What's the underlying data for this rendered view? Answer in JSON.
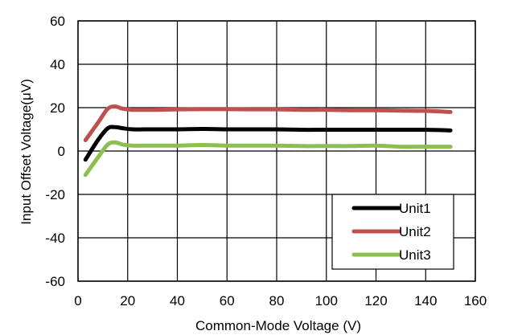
{
  "chart_data": {
    "type": "line",
    "xlabel": "Common-Mode Voltage (V)",
    "ylabel": "Input Offset Voltage(μV)",
    "xlim": [
      0,
      160
    ],
    "ylim": [
      -60,
      60
    ],
    "xticks": [
      0,
      20,
      40,
      60,
      80,
      100,
      120,
      140,
      160
    ],
    "yticks": [
      60,
      40,
      20,
      0,
      -20,
      -40,
      -60
    ],
    "grid": true,
    "legend_position": "bottom-right",
    "series": [
      {
        "name": "Unit1",
        "color": "#000000",
        "x": [
          3,
          8,
          12,
          15,
          18,
          22,
          30,
          40,
          50,
          60,
          70,
          80,
          90,
          100,
          110,
          120,
          130,
          140,
          150
        ],
        "y": [
          -4,
          5,
          10.5,
          11,
          10.5,
          10,
          10,
          10,
          10.2,
          10,
          10,
          10,
          9.8,
          9.8,
          9.8,
          9.8,
          9.8,
          9.8,
          9.5
        ]
      },
      {
        "name": "Unit2",
        "color": "#c0504d",
        "x": [
          3,
          8,
          12,
          15,
          18,
          22,
          30,
          40,
          50,
          60,
          70,
          80,
          90,
          100,
          110,
          120,
          130,
          140,
          150
        ],
        "y": [
          5,
          13,
          19.5,
          20.5,
          19.5,
          19,
          19,
          19.2,
          19.3,
          19.3,
          19.2,
          19.2,
          19,
          19,
          18.8,
          18.8,
          18.6,
          18.5,
          18
        ]
      },
      {
        "name": "Unit3",
        "color": "#8bbf4f",
        "x": [
          3,
          8,
          12,
          15,
          18,
          22,
          30,
          40,
          50,
          60,
          70,
          80,
          90,
          100,
          110,
          120,
          130,
          140,
          150
        ],
        "y": [
          -11,
          -3,
          3,
          4,
          3,
          2.5,
          2.5,
          2.5,
          2.8,
          2.5,
          2.5,
          2.5,
          2.3,
          2.3,
          2.3,
          2.5,
          2,
          2,
          2
        ]
      }
    ]
  }
}
